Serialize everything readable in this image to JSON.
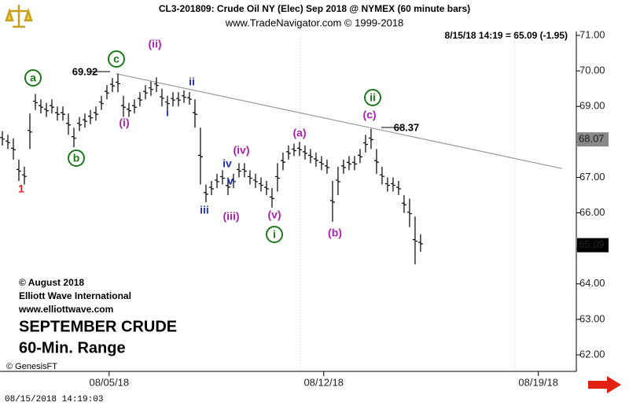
{
  "chart_data": {
    "type": "range-bar",
    "title": "CL3-201809:  Crude Oil NY (Elec) Sep 2018 @ NYMEX  (60 minute bars)",
    "subtitle": "www.TradeNavigator.com © 1999-2018",
    "quote": "8/15/18 14:19 = 65.09 (-1.95)",
    "notes": [
      "© August 2018",
      "Elliott Wave International",
      "www.elliottwave.com"
    ],
    "headline": [
      "SEPTEMBER CRUDE",
      "60-Min. Range"
    ],
    "source": "© GenesisFT",
    "timestamp": "08/15/2018 14:19:03",
    "color": "#000000",
    "highs": [
      68.3,
      68.2,
      68.1,
      67.5,
      67.3,
      68.8,
      69.35,
      69.2,
      69.1,
      69.2,
      69.0,
      69.0,
      68.8,
      68.4,
      68.7,
      68.8,
      68.9,
      69.0,
      69.3,
      69.6,
      69.8,
      69.92,
      69.3,
      69.1,
      69.2,
      69.4,
      69.6,
      69.7,
      69.82,
      69.5,
      69.3,
      69.4,
      69.4,
      69.45,
      69.4,
      69.2,
      68.4,
      66.8,
      66.9,
      67.1,
      67.2,
      67.0,
      67.1,
      67.4,
      67.4,
      67.2,
      67.1,
      67.0,
      66.9,
      66.7,
      67.4,
      67.7,
      67.9,
      67.95,
      68.0,
      67.9,
      67.8,
      67.7,
      67.6,
      67.5,
      66.9,
      67.3,
      67.5,
      67.6,
      67.6,
      67.8,
      68.2,
      68.37,
      67.8,
      67.3,
      67.0,
      67.0,
      66.9,
      66.5,
      66.4,
      65.9,
      65.4
    ],
    "lows": [
      67.9,
      67.8,
      67.5,
      66.9,
      66.8,
      67.8,
      68.9,
      68.8,
      68.7,
      68.8,
      68.6,
      68.6,
      68.2,
      67.85,
      68.3,
      68.4,
      68.5,
      68.6,
      68.9,
      69.2,
      69.4,
      69.4,
      68.7,
      68.7,
      68.8,
      69.0,
      69.2,
      69.3,
      69.4,
      69.0,
      68.9,
      69.0,
      69.0,
      69.1,
      69.05,
      68.4,
      66.8,
      66.3,
      66.5,
      66.7,
      66.8,
      66.5,
      66.7,
      67.0,
      67.0,
      66.8,
      66.7,
      66.6,
      66.5,
      66.15,
      66.6,
      67.2,
      67.5,
      67.6,
      67.6,
      67.5,
      67.4,
      67.3,
      67.2,
      67.1,
      65.75,
      66.5,
      67.1,
      67.2,
      67.2,
      67.4,
      67.7,
      67.8,
      67.1,
      66.8,
      66.6,
      66.6,
      66.5,
      66.0,
      65.6,
      64.55,
      64.9
    ],
    "xlim": [
      0,
      104.3
    ],
    "xticks": [
      {
        "value": 19.4,
        "label": "08/05/18"
      },
      {
        "value": 58.4,
        "label": "08/12/18"
      },
      {
        "value": 97.4,
        "label": "08/19/18"
      }
    ],
    "ylim": [
      62.0,
      71.0
    ],
    "yticks": [
      {
        "value": 71,
        "label": "71.00"
      },
      {
        "value": 70,
        "label": "70.00"
      },
      {
        "value": 69,
        "label": "69.00"
      },
      {
        "value": 68,
        "label": "68.00"
      },
      {
        "value": 67,
        "label": "67.00"
      },
      {
        "value": 66,
        "label": "66.00"
      },
      {
        "value": 65,
        "label": "65.00"
      },
      {
        "value": 64,
        "label": "64.00"
      },
      {
        "value": 63,
        "label": "63.00"
      },
      {
        "value": 62,
        "label": "62.00"
      }
    ],
    "price_tags": [
      {
        "value": 68.07,
        "label": "68.07",
        "color": "#888888"
      },
      {
        "value": 65.09,
        "label": "65.09",
        "color": "#000000"
      }
    ],
    "trendline": {
      "x": [
        20.7,
        101.7
      ],
      "y": [
        69.92,
        67.25
      ],
      "color": "#999999"
    },
    "annotations": [
      {
        "text": "1",
        "color": "#e02020",
        "circled": false
      },
      {
        "text": "a",
        "color": "#1a7a1a",
        "circled": true
      },
      {
        "text": "b",
        "color": "#1a7a1a",
        "circled": true
      },
      {
        "text": "c",
        "color": "#1a7a1a",
        "circled": true
      },
      {
        "text": "69.92",
        "color": "#000000",
        "circled": false
      },
      {
        "text": "(ii)",
        "color": "#b020b0",
        "circled": false
      },
      {
        "text": "(i)",
        "color": "#b020b0",
        "circled": false
      },
      {
        "text": "ii",
        "color": "#2030c0",
        "circled": false
      },
      {
        "text": "i",
        "color": "#2030c0",
        "circled": false
      },
      {
        "text": "iii",
        "color": "#2030c0",
        "circled": false
      },
      {
        "text": "iv",
        "color": "#2030c0",
        "circled": false
      },
      {
        "text": "v",
        "color": "#2030c0",
        "circled": false
      },
      {
        "text": "(iv)",
        "color": "#b020b0",
        "circled": false
      },
      {
        "text": "(iii)",
        "color": "#b020b0",
        "circled": false
      },
      {
        "text": "(v)",
        "color": "#b020b0",
        "circled": false
      },
      {
        "text": "i",
        "color": "#1a7a1a",
        "circled": true
      },
      {
        "text": "(a)",
        "color": "#b020b0",
        "circled": false
      },
      {
        "text": "(b)",
        "color": "#b020b0",
        "circled": false
      },
      {
        "text": "(c)",
        "color": "#b020b0",
        "circled": false
      },
      {
        "text": "ii",
        "color": "#1a7a1a",
        "circled": true
      },
      {
        "text": "68.37",
        "color": "#000000",
        "circled": false
      }
    ]
  }
}
